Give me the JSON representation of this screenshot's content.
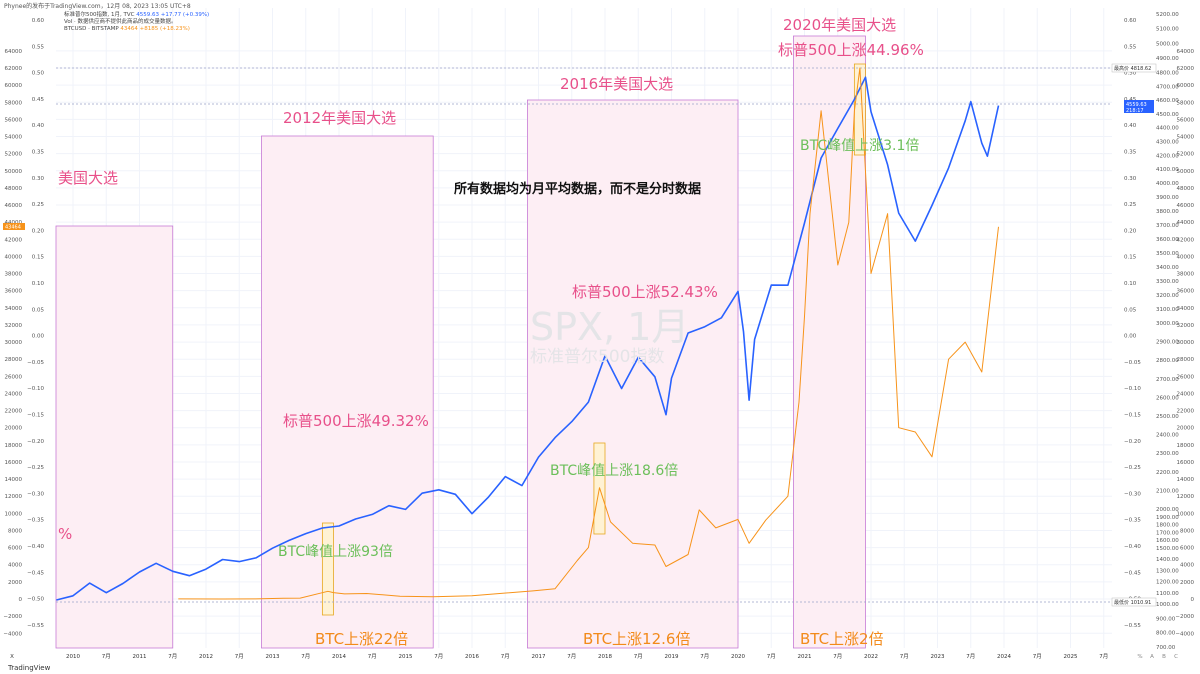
{
  "header": "Phynee的发布于TradingView.com，12月 08, 2023 13:05 UTC+8",
  "legend": {
    "line1": "标准普尔500指数, 1月, TVC",
    "spx_value": "4559.63 +17.77 (+0.39%)",
    "line2": "Vol · 数据供应商不提供此商品的成交量数据。",
    "line3": "BTCUSD · BITSTAMP",
    "btc_value": "43464 +8185 (+18.23%)"
  },
  "colors": {
    "spx": "#2962ff",
    "btc": "#f7931a",
    "box_fill": "#fdeef4",
    "box_border": "#c77bd6",
    "highlight_fill": "#fff2cc",
    "highlight_border": "#e6a820"
  },
  "watermark": {
    "symbol": "SPX, 1月",
    "name": "标准普尔500指数"
  },
  "annotations": {
    "election_2008": "美国大选",
    "election_2012": "2012年美国大选",
    "election_2016": "2016年美国大选",
    "election_2020": "2020年美国大选",
    "spx_2012": "标普500上涨49.32%",
    "spx_2016": "标普500上涨52.43%",
    "spx_2020": "标普500上涨44.96%",
    "btc_peak_2012": "BTC峰值上涨93倍",
    "btc_peak_2016": "BTC峰值上涨18.6倍",
    "btc_peak_2020": "BTC峰值上涨3.1倍",
    "btc_2012": "BTC上涨22倍",
    "btc_2016": "BTC上涨12.6倍",
    "btc_2020": "BTC上涨2倍",
    "pct_fragment": "%",
    "note": "所有数据均为月平均数据，而不是分时数据"
  },
  "price_tags": {
    "high_label": "最高价",
    "high_value": "4818.62",
    "spx_last": "4559.63",
    "spx_change": "218:17",
    "low_label": "最低价",
    "low_value": "1010.91",
    "btc_left": "43464"
  },
  "footer": {
    "logo": "TradingView",
    "left_buttons": [
      "X",
      "Y",
      "Z"
    ],
    "right_buttons": [
      "% ",
      "A",
      "B",
      "C"
    ]
  },
  "chart_data": {
    "type": "line",
    "series": [
      {
        "name": "SPX",
        "axis": "right",
        "x": [
          "2009-10",
          "2010-01",
          "2010-04",
          "2010-07",
          "2010-10",
          "2011-01",
          "2011-04",
          "2011-07",
          "2011-10",
          "2012-01",
          "2012-04",
          "2012-07",
          "2012-10",
          "2013-01",
          "2013-04",
          "2013-07",
          "2013-10",
          "2014-01",
          "2014-04",
          "2014-07",
          "2014-10",
          "2015-01",
          "2015-04",
          "2015-07",
          "2015-10",
          "2016-01",
          "2016-04",
          "2016-07",
          "2016-10",
          "2017-01",
          "2017-04",
          "2017-07",
          "2017-10",
          "2018-01",
          "2018-04",
          "2018-07",
          "2018-10",
          "2018-12",
          "2019-01",
          "2019-04",
          "2019-07",
          "2019-10",
          "2020-01",
          "2020-02",
          "2020-03",
          "2020-04",
          "2020-07",
          "2020-10",
          "2021-01",
          "2021-04",
          "2021-07",
          "2021-10",
          "2021-12",
          "2022-01",
          "2022-04",
          "2022-06",
          "2022-09",
          "2022-12",
          "2023-03",
          "2023-06",
          "2023-07",
          "2023-09",
          "2023-10",
          "2023-12"
        ],
        "values": [
          1036,
          1073,
          1187,
          1101,
          1183,
          1286,
          1363,
          1292,
          1253,
          1312,
          1397,
          1379,
          1412,
          1498,
          1597,
          1685,
          1756,
          1782,
          1872,
          1931,
          2018,
          1995,
          2085,
          2103,
          2079,
          1940,
          2065,
          2174,
          2126,
          2279,
          2384,
          2470,
          2575,
          2823,
          2648,
          2816,
          2711,
          2507,
          2704,
          2946,
          2980,
          3037,
          3226,
          2954,
          2585,
          2912,
          3271,
          3270,
          3714,
          4181,
          4395,
          4605,
          4766,
          4516,
          4132,
          3785,
          3585,
          3840,
          4109,
          4450,
          4589,
          4288,
          4194,
          4560
        ]
      },
      {
        "name": "BTCUSD",
        "axis": "left",
        "x": [
          "2011-08",
          "2012-04",
          "2012-10",
          "2013-03",
          "2013-06",
          "2013-11",
          "2013-12",
          "2014-02",
          "2014-06",
          "2014-12",
          "2015-06",
          "2016-01",
          "2016-06",
          "2016-12",
          "2017-04",
          "2017-08",
          "2017-10",
          "2017-12",
          "2018-02",
          "2018-06",
          "2018-10",
          "2018-12",
          "2019-04",
          "2019-06",
          "2019-09",
          "2020-01",
          "2020-03",
          "2020-06",
          "2020-10",
          "2020-12",
          "2021-01",
          "2021-02",
          "2021-04",
          "2021-07",
          "2021-09",
          "2021-10",
          "2021-11",
          "2022-01",
          "2022-04",
          "2022-06",
          "2022-09",
          "2022-12",
          "2023-03",
          "2023-06",
          "2023-09",
          "2023-12"
        ],
        "values": [
          8,
          5,
          11,
          90,
          110,
          900,
          750,
          600,
          640,
          330,
          260,
          380,
          640,
          950,
          1200,
          4500,
          6000,
          13000,
          9000,
          6500,
          6300,
          3800,
          5200,
          10400,
          8300,
          9300,
          6500,
          9200,
          12000,
          23000,
          33000,
          45000,
          57000,
          39000,
          44000,
          57000,
          62000,
          38000,
          45000,
          20000,
          19500,
          16600,
          28000,
          30000,
          26500,
          43464
        ]
      }
    ],
    "right_axis": {
      "ylim": [
        -4000,
        64000
      ],
      "ticks": [
        -4000,
        -2000,
        0,
        2000,
        4000,
        6000,
        8000,
        10000,
        12000,
        14000,
        16000,
        18000,
        20000,
        22000,
        24000,
        26000,
        28000,
        30000,
        32000,
        34000,
        36000,
        38000,
        40000,
        42000,
        44000,
        46000,
        48000,
        50000,
        52000,
        54000,
        56000,
        58000,
        60000,
        62000,
        64000
      ]
    },
    "second_right_axis": {
      "ticks": [
        "700.00",
        "800.00",
        "900.00",
        "1000.00",
        "1100.00",
        "1200.00",
        "1300.00",
        "1400.00",
        "1500.00",
        "1600.00",
        "1700.00",
        "1800.00",
        "1900.00",
        "2000.00",
        "2100.00",
        "2200.00",
        "2300.00",
        "2400.00",
        "2500.00",
        "2600.00",
        "2700.00",
        "2800.00",
        "2900.00",
        "3000.00",
        "3100.00",
        "3200.00",
        "3300.00",
        "3400.00",
        "3500.00",
        "3600.00",
        "3700.00",
        "3800.00",
        "3900.00",
        "4000.00",
        "4100.00",
        "4200.00",
        "4300.00",
        "4400.00",
        "4500.00",
        "4600.00",
        "4700.00",
        "4800.00",
        "4900.00",
        "5000.00",
        "5100.00",
        "5200.00"
      ]
    },
    "left_axis": {
      "ticks": [
        -4000,
        -2000,
        0,
        2000,
        4000,
        6000,
        8000,
        10000,
        12000,
        14000,
        16000,
        18000,
        20000,
        22000,
        24000,
        26000,
        28000,
        30000,
        32000,
        34000,
        36000,
        38000,
        40000,
        42000,
        44000,
        46000,
        48000,
        50000,
        52000,
        54000,
        56000,
        58000,
        60000,
        62000,
        64000
      ]
    },
    "pct_axis": {
      "ticks": [
        "0.60",
        "0.55",
        "0.50",
        "0.45",
        "0.40",
        "0.35",
        "0.30",
        "0.25",
        "0.20",
        "0.15",
        "0.10",
        "0.05",
        "0.00",
        "−0.05",
        "−0.10",
        "−0.15",
        "−0.20",
        "−0.25",
        "−0.30",
        "−0.35",
        "−0.40",
        "−0.45",
        "−0.50",
        "−0.55"
      ]
    },
    "x_axis": {
      "ticks": [
        "X",
        "2010",
        "7月",
        "2011",
        "7月",
        "2012",
        "7月",
        "2013",
        "7月",
        "2014",
        "7月",
        "2015",
        "7月",
        "2016",
        "7月",
        "2017",
        "7月",
        "2018",
        "7月",
        "2019",
        "7月",
        "2020",
        "7月",
        "2021",
        "7月",
        "2022",
        "7月",
        "2023",
        "7月",
        "2024",
        "7月",
        "2025",
        "7月"
      ]
    },
    "election_periods": [
      {
        "label": "美国大选",
        "start": "2008-11",
        "end": "2011-07"
      },
      {
        "label": "2012年美国大选",
        "start": "2012-11",
        "end": "2015-06"
      },
      {
        "label": "2016年美国大选",
        "start": "2016-11",
        "end": "2020-01"
      },
      {
        "label": "2020年美国大选",
        "start": "2020-11",
        "end": "2021-12"
      }
    ],
    "btc_peak_highlights": [
      {
        "label": "BTC峰值上涨93倍",
        "start": "2013-10",
        "end": "2013-12"
      },
      {
        "label": "BTC峰值上涨18.6倍",
        "start": "2017-11",
        "end": "2018-01"
      },
      {
        "label": "BTC峰值上涨3.1倍",
        "start": "2021-10",
        "end": "2021-12"
      }
    ],
    "grid": true
  }
}
